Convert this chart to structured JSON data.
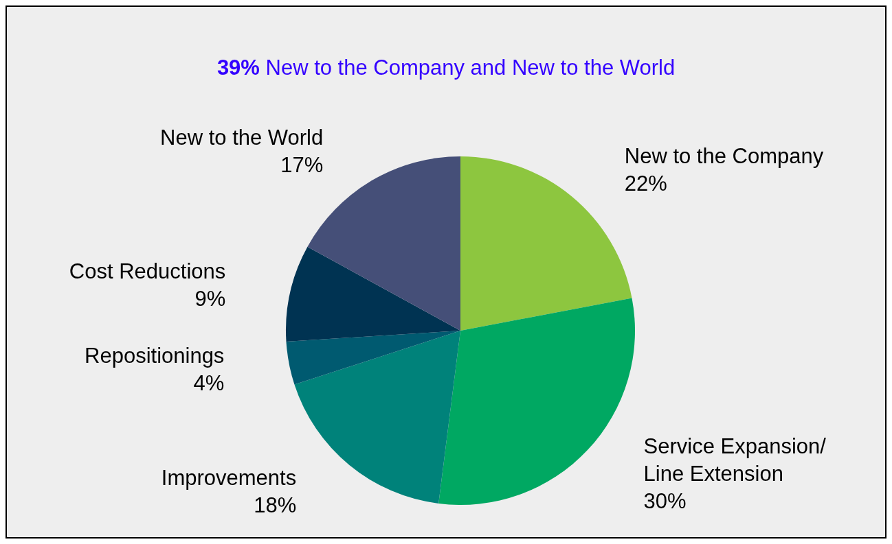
{
  "chart_data": {
    "type": "pie",
    "title": "39% New to the Company and New to the World",
    "categories": [
      "New to the Company",
      "Service Expansion/ Line Extension",
      "Improvements",
      "Repositionings",
      "Cost Reductions",
      "New to the World"
    ],
    "values": [
      22,
      30,
      18,
      4,
      9,
      17
    ],
    "colors": [
      "#8dc63f",
      "#00a862",
      "#00827a",
      "#005a70",
      "#003352",
      "#454f78"
    ],
    "value_labels": [
      "22%",
      "30%",
      "18%",
      "4%",
      "9%",
      "17%"
    ]
  }
}
